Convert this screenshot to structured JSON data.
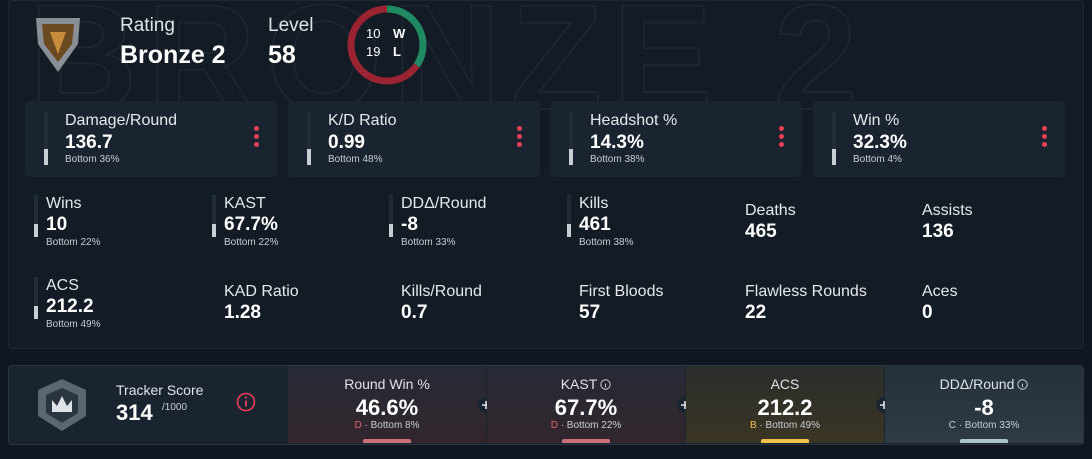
{
  "header": {
    "rating_label": "Rating",
    "rank": "Bronze 2",
    "level_label": "Level",
    "level": "58",
    "record": {
      "wins": 10,
      "win_label": "W",
      "losses": 19,
      "loss_label": "L"
    }
  },
  "cards": [
    {
      "label": "Damage/Round",
      "value": "136.7",
      "sub": "Bottom 36%"
    },
    {
      "label": "K/D Ratio",
      "value": "0.99",
      "sub": "Bottom 48%"
    },
    {
      "label": "Headshot %",
      "value": "14.3%",
      "sub": "Bottom 38%"
    },
    {
      "label": "Win %",
      "value": "32.3%",
      "sub": "Bottom 4%"
    }
  ],
  "stats": [
    {
      "label": "Wins",
      "value": "10",
      "sub": "Bottom 22%"
    },
    {
      "label": "KAST",
      "value": "67.7%",
      "sub": "Bottom 22%"
    },
    {
      "label": "DDΔ/Round",
      "value": "-8",
      "sub": "Bottom 33%"
    },
    {
      "label": "Kills",
      "value": "461",
      "sub": "Bottom 38%"
    },
    {
      "label": "Deaths",
      "value": "465"
    },
    {
      "label": "Assists",
      "value": "136"
    },
    {
      "label": "ACS",
      "value": "212.2",
      "sub": "Bottom 49%"
    },
    {
      "label": "KAD Ratio",
      "value": "1.28"
    },
    {
      "label": "Kills/Round",
      "value": "0.7"
    },
    {
      "label": "First Bloods",
      "value": "57"
    },
    {
      "label": "Flawless Rounds",
      "value": "22"
    },
    {
      "label": "Aces",
      "value": "0"
    }
  ],
  "tracker": {
    "label": "Tracker Score",
    "score": "314",
    "max": "/1000",
    "metrics": [
      {
        "label": "Round Win %",
        "value": "46.6%",
        "grade": "D",
        "sub": "· Bottom 8%"
      },
      {
        "label": "KAST",
        "value": "67.7%",
        "grade": "D",
        "sub": "· Bottom 22%"
      },
      {
        "label": "ACS",
        "value": "212.2",
        "grade": "B",
        "sub": "· Bottom 49%"
      },
      {
        "label": "DDΔ/Round",
        "value": "-8",
        "grade": "C",
        "sub": "· Bottom 33%"
      }
    ]
  }
}
